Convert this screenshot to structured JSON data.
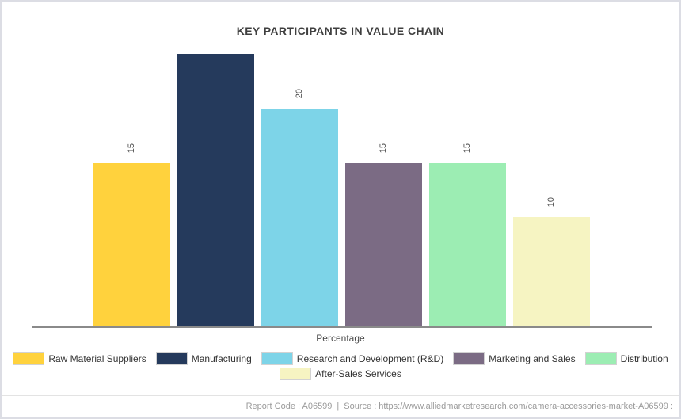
{
  "chart_data": {
    "type": "bar",
    "title": "KEY PARTICIPANTS IN VALUE CHAIN",
    "xlabel": "Percentage",
    "ylabel": "",
    "ylim": [
      0,
      25
    ],
    "grid": false,
    "legend_position": "bottom",
    "categories": [
      "Raw Material Suppliers",
      "Manufacturing",
      "Research and Development (R&D)",
      "Marketing and Sales",
      "Distribution",
      "After-Sales Services"
    ],
    "values": [
      15,
      25,
      20,
      15,
      15,
      10
    ],
    "value_labels": [
      "15",
      "",
      "20",
      "15",
      "15",
      "10"
    ],
    "colors": [
      "#ffd23d",
      "#253a5c",
      "#7dd4e8",
      "#7b6b84",
      "#9cedb3",
      "#f6f4c2"
    ],
    "legend_rows": [
      [
        0,
        1,
        2,
        3,
        4
      ],
      [
        5
      ]
    ]
  },
  "footer": {
    "report_code": "Report Code : A06599",
    "separator": "|",
    "source": "Source : https://www.alliedmarketresearch.com/camera-accessories-market-A06599 :"
  }
}
